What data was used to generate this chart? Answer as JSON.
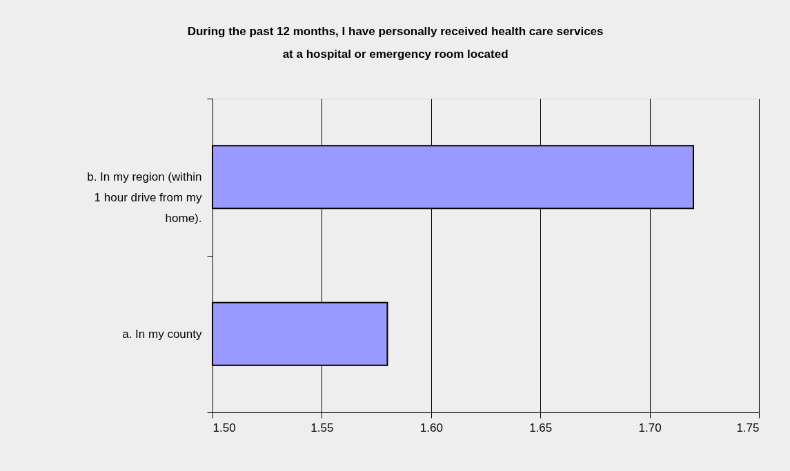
{
  "chart_data": {
    "type": "bar",
    "orientation": "horizontal",
    "title": "During the past 12 months, I have personally received health care services at a hospital or emergency room located",
    "categories": [
      "b. In my region (within 1 hour drive from my home).",
      "a. In my county"
    ],
    "values": [
      1.72,
      1.58
    ],
    "color": "#9999ff",
    "xlim": [
      1.5,
      1.75
    ],
    "xticks": [
      {
        "value": 1.5,
        "label": "1.50"
      },
      {
        "value": 1.55,
        "label": "1.55"
      },
      {
        "value": 1.6,
        "label": "1.60"
      },
      {
        "value": 1.65,
        "label": "1.65"
      },
      {
        "value": 1.7,
        "label": "1.70"
      },
      {
        "value": 1.75,
        "label": "1.75"
      }
    ],
    "grid": "x"
  }
}
